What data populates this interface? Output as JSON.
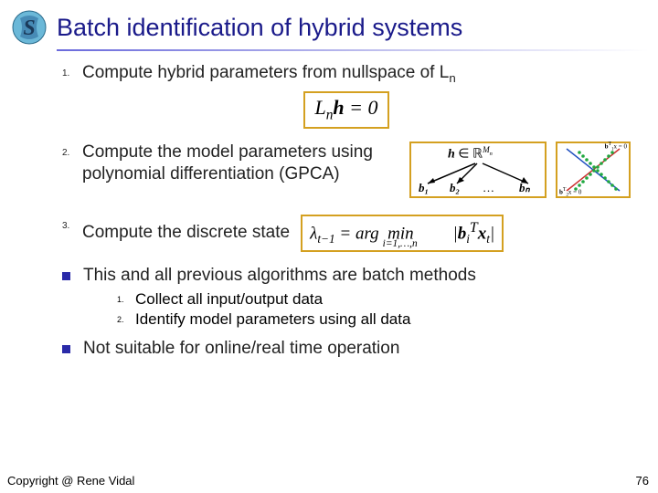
{
  "title": "Batch identification of hybrid systems",
  "items": [
    {
      "num": "1.",
      "text_html": "Compute hybrid parameters from nullspace of L<sub>n</sub>"
    },
    {
      "num": "2.",
      "text_html": "Compute the model parameters using polynomial differentiation (GPCA)"
    },
    {
      "num": "3.",
      "text_html": "Compute the discrete state"
    }
  ],
  "eq1_html": "L<sub>n</sub><b>h</b> = 0",
  "diagram": {
    "top_html": "<b><i>h</i></b> ∈ ℝ<sup style='font-size:0.65em'><i>M<sub>n</sub></i></sup>",
    "bottom": [
      "b₁",
      "b₂",
      "…",
      "bₙ"
    ]
  },
  "scatter": {
    "line1_color": "#cc3030",
    "line2_color": "#2050c0",
    "dot_color": "#20a840",
    "label1_html": "<b>b</b><sup>T</sup><sub>1</sub>x = 0",
    "label2_html": "<b>b</b><sup>T</sup><sub>2</sub>x = 0",
    "dots": [
      [
        14,
        48
      ],
      [
        18,
        44
      ],
      [
        22,
        40
      ],
      [
        26,
        36
      ],
      [
        30,
        32
      ],
      [
        34,
        28
      ],
      [
        38,
        24
      ],
      [
        42,
        20
      ],
      [
        46,
        16
      ],
      [
        50,
        12
      ],
      [
        54,
        8
      ],
      [
        58,
        48
      ],
      [
        54,
        44
      ],
      [
        50,
        40
      ],
      [
        46,
        36
      ],
      [
        42,
        32
      ],
      [
        38,
        28
      ],
      [
        34,
        24
      ],
      [
        30,
        20
      ],
      [
        26,
        16
      ],
      [
        22,
        12
      ],
      [
        18,
        8
      ]
    ]
  },
  "eq3_html": "λ<sub>t−1</sub> = arg &nbsp;min<sub style='font-size:0.6em;position:relative;left:-34px;top:4px'>i=1,…,n</sub> |<b>b</b><sub>i</sub><sup>T</sup><b>x</b><sub>t</sub>|",
  "bullet1": "This and all previous algorithms are batch methods",
  "sub": [
    {
      "num": "1.",
      "text": "Collect all input/output data"
    },
    {
      "num": "2.",
      "text": "Identify model parameters using all data"
    }
  ],
  "bullet2": "Not suitable for online/real time operation",
  "copyright": "Copyright @ Rene Vidal",
  "page": "76",
  "colors": {
    "title": "#1a1a8a",
    "box_border": "#d4a020",
    "bullet": "#2a2aa8"
  }
}
